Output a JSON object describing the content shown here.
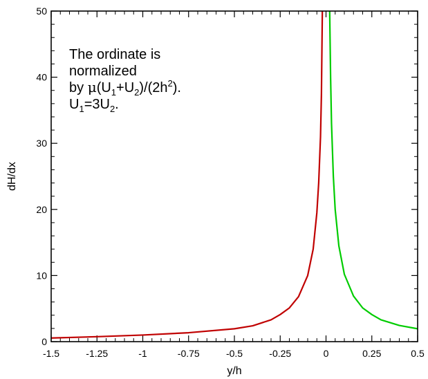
{
  "chart_data": {
    "type": "line",
    "xlabel": "y/h",
    "ylabel": "dH/dx",
    "xlim": [
      -1.5,
      0.5
    ],
    "ylim": [
      0,
      50
    ],
    "xticks": [
      {
        "value": -1.5,
        "label": "-1.5"
      },
      {
        "value": -1.25,
        "label": "-1.25"
      },
      {
        "value": -1,
        "label": "-1"
      },
      {
        "value": -0.75,
        "label": "-0.75"
      },
      {
        "value": -0.5,
        "label": "-0.5"
      },
      {
        "value": -0.25,
        "label": "-0.25"
      },
      {
        "value": 0,
        "label": "0"
      },
      {
        "value": 0.25,
        "label": "0.25"
      },
      {
        "value": 0.5,
        "label": "0.5"
      }
    ],
    "yticks": [
      {
        "value": 0,
        "label": "0"
      },
      {
        "value": 10,
        "label": "10"
      },
      {
        "value": 20,
        "label": "20"
      },
      {
        "value": 30,
        "label": "30"
      },
      {
        "value": 40,
        "label": "40"
      },
      {
        "value": 50,
        "label": "50"
      }
    ],
    "grid": false,
    "annotation": {
      "line1": "The ordinate is",
      "line2": "normalized",
      "line3_prefix": "by ",
      "mu": "μ",
      "line3_a": "(U",
      "sub1": "1",
      "line3_b": "+U",
      "sub2": "2",
      "line3_c": ")/(2h",
      "sup2": "2",
      "line3_d": ").",
      "line4_a": "U",
      "line4_sub1": "1",
      "line4_b": "=3U",
      "line4_sub2": "2",
      "line4_c": "."
    },
    "series": [
      {
        "color": "#c00000",
        "x": [
          -1.5,
          -1.25,
          -1.0,
          -0.75,
          -0.5,
          -0.4,
          -0.3,
          -0.25,
          -0.2,
          -0.15,
          -0.1,
          -0.07,
          -0.05,
          -0.04,
          -0.03,
          -0.025,
          -0.02
        ],
        "y": [
          0.55,
          0.75,
          1.0,
          1.35,
          1.95,
          2.4,
          3.3,
          4.1,
          5.1,
          6.8,
          10.0,
          14.0,
          19.5,
          24.0,
          31.0,
          37.5,
          50.0
        ]
      },
      {
        "color": "#00cc00",
        "x": [
          0.02,
          0.025,
          0.03,
          0.04,
          0.05,
          0.07,
          0.1,
          0.15,
          0.2,
          0.25,
          0.3,
          0.4,
          0.5
        ],
        "y": [
          50.0,
          40.0,
          33.0,
          25.0,
          20.0,
          14.5,
          10.2,
          6.9,
          5.1,
          4.1,
          3.3,
          2.45,
          1.95
        ]
      }
    ]
  }
}
